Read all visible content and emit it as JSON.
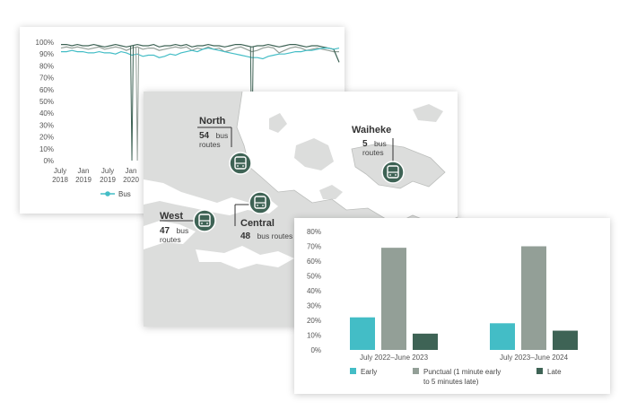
{
  "colors": {
    "teal": "#43bdc6",
    "grey": "#939f97",
    "dark": "#3e6355",
    "land": "#dcdddc",
    "water": "#ffffff",
    "marker": "#3e6355"
  },
  "line_chart": {
    "y_ticks": [
      "100%",
      "90%",
      "80%",
      "70%",
      "60%",
      "50%",
      "40%",
      "30%",
      "20%",
      "10%",
      "0%"
    ],
    "x_ticks": [
      {
        "line1": "July",
        "line2": "2018"
      },
      {
        "line1": "Jan",
        "line2": "2019"
      },
      {
        "line1": "July",
        "line2": "2019"
      },
      {
        "line1": "Jan",
        "line2": "2020"
      }
    ],
    "legend_label": "Bus"
  },
  "map": {
    "regions": [
      {
        "name": "North",
        "count": "54",
        "unit_line1": "bus",
        "unit_line2": "routes",
        "icon": "bus-icon"
      },
      {
        "name": "Waiheke",
        "count": "5",
        "unit_line1": "bus",
        "unit_line2": "routes",
        "icon": "bus-icon"
      },
      {
        "name": "West",
        "count": "47",
        "unit_line1": "bus",
        "unit_line2": "routes",
        "icon": "bus-icon"
      },
      {
        "name": "Central",
        "count": "48",
        "unit_line1": "bus routes",
        "unit_line2": "",
        "icon": "bus-icon"
      }
    ]
  },
  "chart_data": [
    {
      "type": "line",
      "y_unit": "%",
      "ylim": [
        0,
        100
      ],
      "x_tick_labels": [
        "July 2018",
        "Jan 2019",
        "July 2019",
        "Jan 2020"
      ],
      "series": [
        {
          "name": "Bus",
          "color": "#43bdc6",
          "values": [
            92,
            92,
            93,
            92,
            92,
            91,
            91,
            92,
            91,
            91,
            90,
            92,
            91,
            89,
            90,
            88,
            89,
            89,
            87,
            88,
            90,
            89,
            91,
            92,
            93,
            92,
            94,
            95,
            94,
            93,
            92,
            91,
            90,
            89,
            88,
            87,
            87,
            86,
            88,
            89,
            90,
            90,
            91,
            92,
            92,
            93,
            93,
            94,
            95,
            95,
            94,
            95
          ]
        },
        {
          "series_index": 2,
          "color": "#3e6355",
          "values": [
            98,
            98,
            97,
            98,
            97,
            97,
            98,
            97,
            96,
            97,
            98,
            97,
            96,
            97,
            98,
            97,
            97,
            98,
            96,
            97,
            97,
            98,
            97,
            98,
            96,
            97,
            97,
            98,
            97,
            97,
            96,
            97,
            98,
            98,
            97,
            96,
            97,
            97,
            98,
            97,
            96,
            97,
            98,
            98,
            97,
            96,
            97,
            97,
            96,
            95,
            94,
            83
          ]
        },
        {
          "series_index": 3,
          "color": "#939f97",
          "values": [
            95,
            96,
            95,
            96,
            95,
            94,
            95,
            96,
            94,
            95,
            96,
            95,
            93,
            95,
            96,
            94,
            95,
            95,
            93,
            94,
            95,
            96,
            95,
            96,
            93,
            95,
            94,
            96,
            94,
            95,
            92,
            93,
            95,
            96,
            94,
            92,
            93,
            95,
            96,
            95,
            91,
            93,
            95,
            96,
            95,
            93,
            94,
            95,
            94,
            93,
            92,
            92
          ]
        }
      ],
      "dips": [
        {
          "series_index": 2,
          "at_point": 13,
          "to": 0
        },
        {
          "series_index": 2,
          "at_point": 35,
          "to": 0
        },
        {
          "series_index": 3,
          "at_point": 14,
          "to": 0
        }
      ]
    },
    {
      "type": "bar",
      "categories": [
        "July 2022–June 2023",
        "July 2023–June 2024"
      ],
      "ylim": [
        0,
        80
      ],
      "y_ticks": [
        "80%",
        "70%",
        "60%",
        "50%",
        "40%",
        "30%",
        "20%",
        "10%",
        "0%"
      ],
      "series": [
        {
          "name": "Early",
          "color": "#43bdc6",
          "values": [
            22,
            18
          ]
        },
        {
          "name": "Punctual (1 minute early to 5 minutes late)",
          "name_line1": "Punctual (1 minute early",
          "name_line2": "to 5 minutes late)",
          "color": "#939f97",
          "values": [
            69,
            70
          ]
        },
        {
          "name": "Late",
          "color": "#3e6355",
          "values": [
            11,
            13
          ]
        }
      ]
    }
  ]
}
